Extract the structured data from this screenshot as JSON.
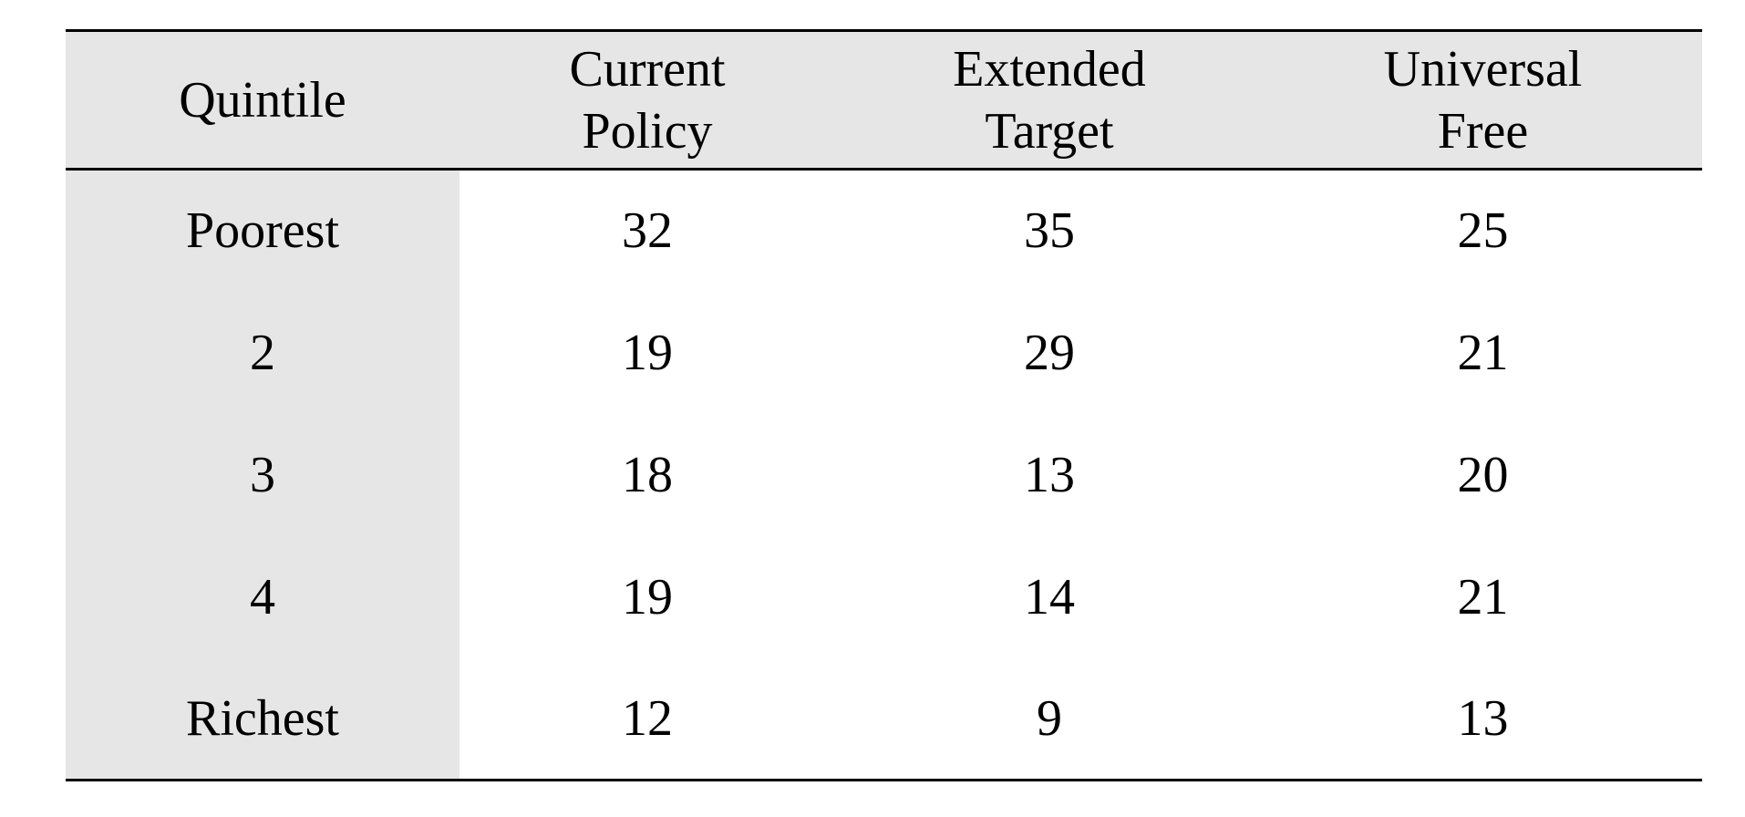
{
  "table": {
    "columns": [
      {
        "lines": [
          "Quintile"
        ]
      },
      {
        "lines": [
          "Current",
          "Policy"
        ]
      },
      {
        "lines": [
          "Extended",
          "Target"
        ]
      },
      {
        "lines": [
          "Universal",
          "Free"
        ]
      }
    ],
    "rows": [
      {
        "label": "Poorest",
        "values": [
          "32",
          "35",
          "25"
        ]
      },
      {
        "label": "2",
        "values": [
          "19",
          "29",
          "21"
        ]
      },
      {
        "label": "3",
        "values": [
          "18",
          "13",
          "20"
        ]
      },
      {
        "label": "4",
        "values": [
          "19",
          "14",
          "21"
        ]
      },
      {
        "label": "Richest",
        "values": [
          "12",
          "9",
          "13"
        ]
      }
    ]
  },
  "colors": {
    "header_shade": "#e6e6e6",
    "rule": "#000000"
  }
}
